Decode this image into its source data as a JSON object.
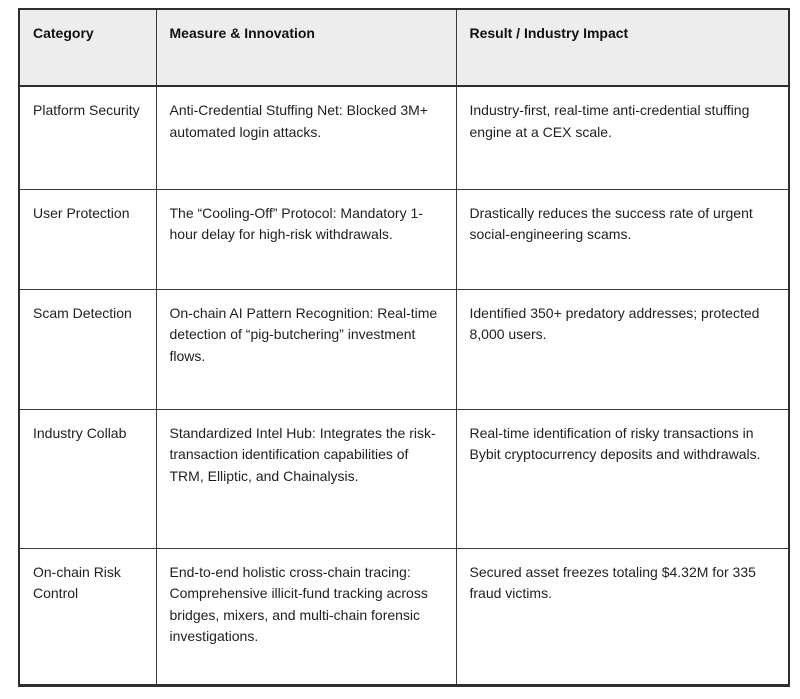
{
  "table": {
    "columns": [
      "Category",
      "Measure & Innovation",
      "Result / Industry Impact"
    ],
    "rows": [
      {
        "category": "Platform Security",
        "measure": "Anti-Credential Stuffing Net: Blocked 3M+ automated login attacks.",
        "result": "Industry-first, real-time anti-credential stuffing engine at a CEX scale."
      },
      {
        "category": "User Protection",
        "measure": "The “Cooling-Off” Protocol: Mandatory 1-hour delay for high-risk withdrawals.",
        "result": "Drastically reduces the success rate of urgent social-engineering scams."
      },
      {
        "category": "Scam Detection",
        "measure": "On-chain AI Pattern Recognition: Real-time detection of “pig-butchering” investment flows.",
        "result": "Identified 350+ predatory addresses; protected 8,000 users."
      },
      {
        "category": "Industry Collab",
        "measure": "Standardized Intel Hub: Integrates the risk-transaction identification capabilities of TRM, Elliptic, and Chainalysis.",
        "result": "Real-time identification of risky transactions in Bybit cryptocurrency deposits and withdrawals."
      },
      {
        "category": "On-chain Risk Control",
        "measure": "End-to-end holistic cross-chain tracing:  Comprehensive illicit-fund tracking across bridges, mixers, and multi-chain forensic investigations.",
        "result": "Secured asset freezes totaling $4.32M for 335 fraud victims."
      }
    ]
  }
}
